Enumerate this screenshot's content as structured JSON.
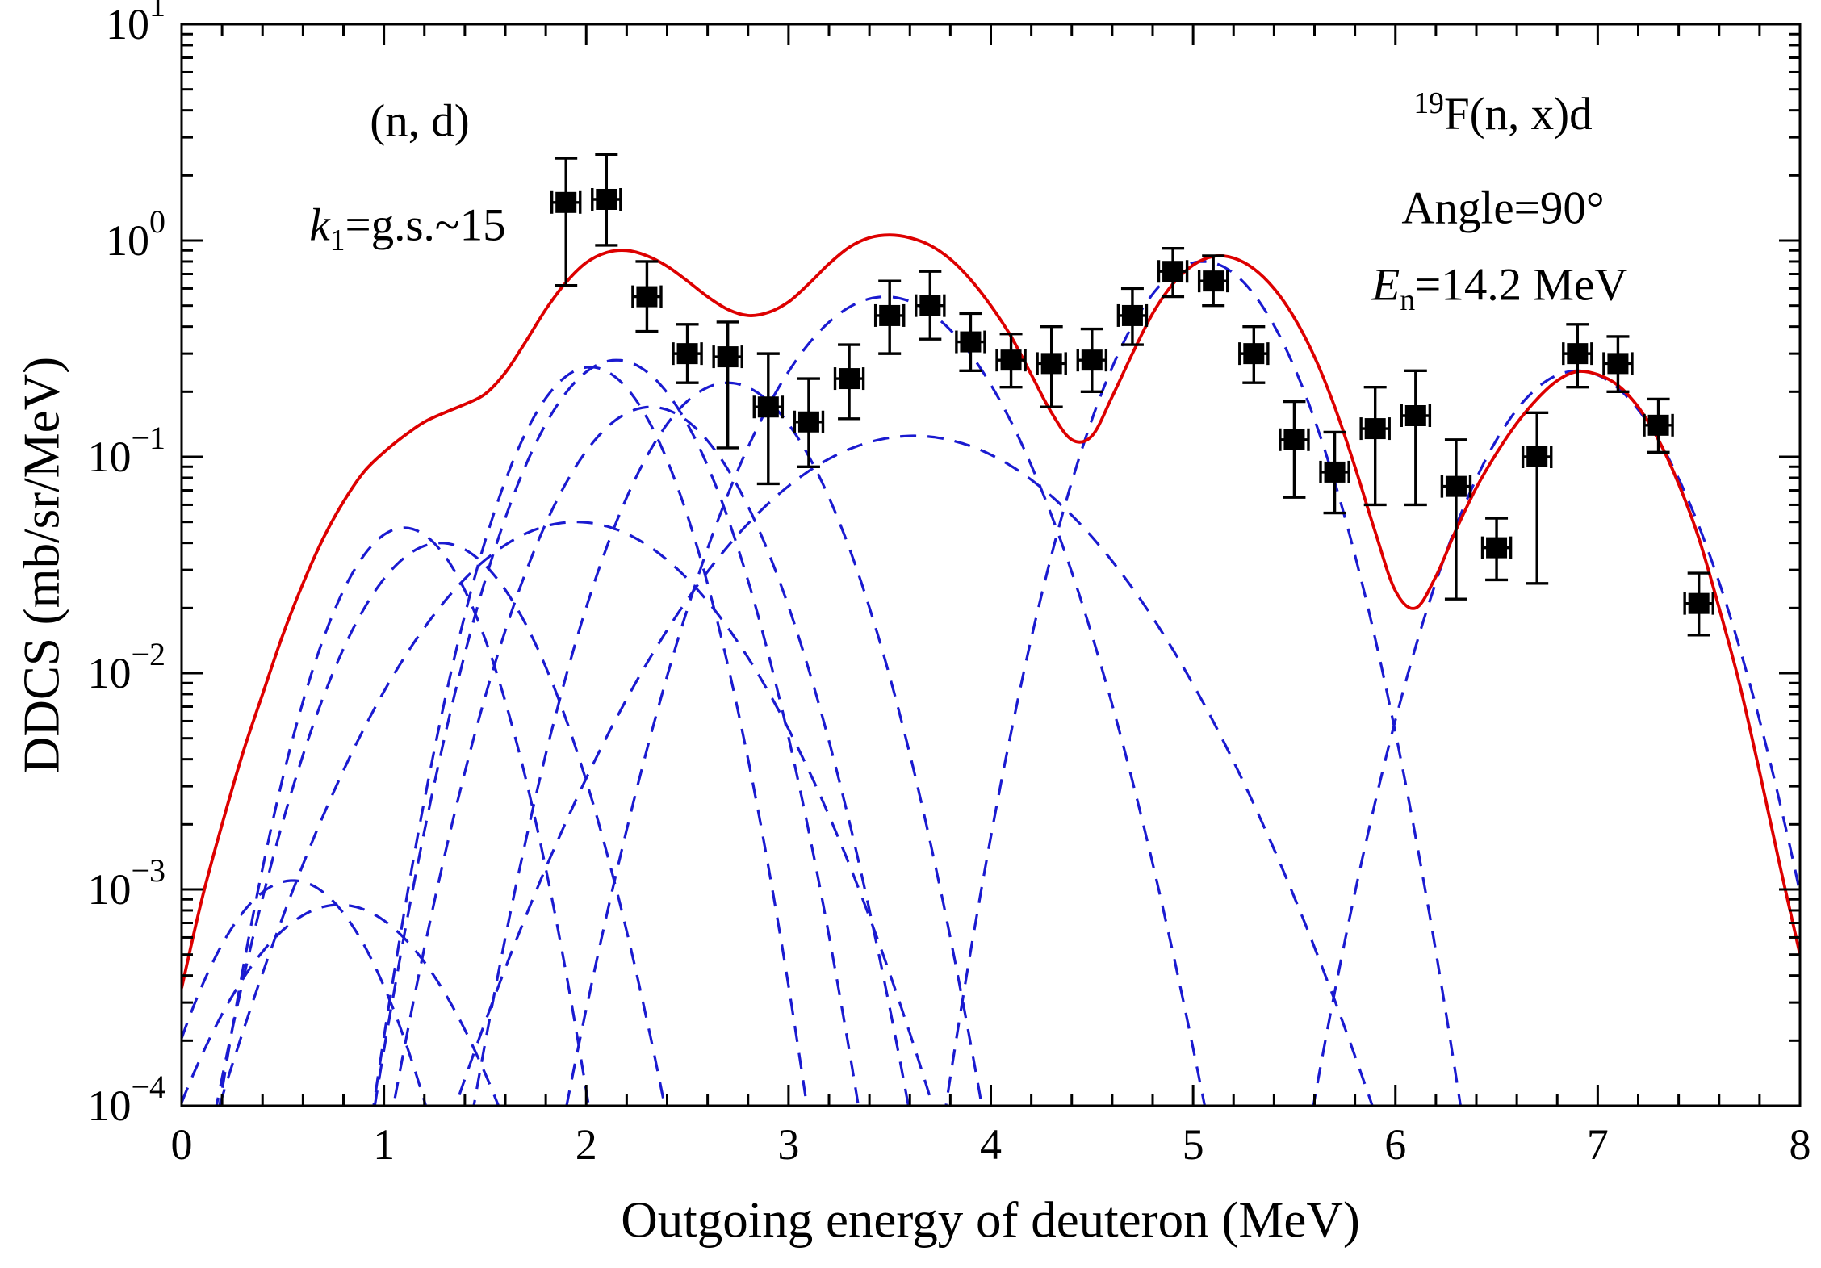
{
  "figure": {
    "background": "#ffffff",
    "annotations": {
      "nd": "(n, d)",
      "k_var": "k",
      "k_sub": "1",
      "k_rest": "=g.s.~15",
      "f_sup": "19",
      "f_main": "F(n, x)d",
      "angle": "Angle=90°",
      "en_var": "E",
      "en_sub": "n",
      "en_rest": "=14.2 MeV"
    }
  },
  "chart_data": {
    "type": "line",
    "title": "",
    "xlabel": "Outgoing energy of deuteron (MeV)",
    "ylabel": "DDCS (mb/sr/MeV)",
    "xlim": [
      0,
      8
    ],
    "ylim_log10": [
      -4,
      1
    ],
    "x_major_ticks": [
      0,
      1,
      2,
      3,
      4,
      5,
      6,
      7,
      8
    ],
    "x_minor_step": 0.2,
    "y_major_exponents": [
      -4,
      -3,
      -2,
      -1,
      0,
      1
    ],
    "grid": false,
    "legend": "none",
    "colors": {
      "total": "#dd0000",
      "components": "#1a1ad0",
      "data": "#000000",
      "frame": "#000000"
    },
    "series_meta": [
      {
        "name": "total DDCS (solid red)",
        "style": "solid"
      },
      {
        "name": "individual level contributions k=g.s.~15 (dashed blue)",
        "style": "dashed"
      },
      {
        "name": "experimental data (black squares with error bars)",
        "style": "marker"
      }
    ],
    "total_curve": [
      [
        0,
        0.00035
      ],
      [
        0.1,
        0.0009
      ],
      [
        0.2,
        0.002
      ],
      [
        0.3,
        0.0042
      ],
      [
        0.4,
        0.008
      ],
      [
        0.5,
        0.015
      ],
      [
        0.6,
        0.026
      ],
      [
        0.7,
        0.042
      ],
      [
        0.8,
        0.062
      ],
      [
        0.9,
        0.085
      ],
      [
        1.0,
        0.105
      ],
      [
        1.1,
        0.125
      ],
      [
        1.2,
        0.145
      ],
      [
        1.3,
        0.16
      ],
      [
        1.4,
        0.175
      ],
      [
        1.5,
        0.195
      ],
      [
        1.6,
        0.245
      ],
      [
        1.7,
        0.34
      ],
      [
        1.8,
        0.48
      ],
      [
        1.9,
        0.64
      ],
      [
        2.0,
        0.79
      ],
      [
        2.1,
        0.88
      ],
      [
        2.2,
        0.9
      ],
      [
        2.3,
        0.85
      ],
      [
        2.4,
        0.76
      ],
      [
        2.5,
        0.65
      ],
      [
        2.6,
        0.55
      ],
      [
        2.7,
        0.48
      ],
      [
        2.8,
        0.45
      ],
      [
        2.9,
        0.465
      ],
      [
        3.0,
        0.52
      ],
      [
        3.1,
        0.63
      ],
      [
        3.2,
        0.78
      ],
      [
        3.3,
        0.93
      ],
      [
        3.4,
        1.03
      ],
      [
        3.5,
        1.06
      ],
      [
        3.6,
        1.03
      ],
      [
        3.7,
        0.95
      ],
      [
        3.8,
        0.82
      ],
      [
        3.9,
        0.66
      ],
      [
        4.0,
        0.5
      ],
      [
        4.1,
        0.36
      ],
      [
        4.2,
        0.24
      ],
      [
        4.3,
        0.16
      ],
      [
        4.4,
        0.12
      ],
      [
        4.5,
        0.125
      ],
      [
        4.6,
        0.19
      ],
      [
        4.7,
        0.3
      ],
      [
        4.8,
        0.46
      ],
      [
        4.9,
        0.63
      ],
      [
        5.0,
        0.77
      ],
      [
        5.1,
        0.845
      ],
      [
        5.2,
        0.83
      ],
      [
        5.3,
        0.74
      ],
      [
        5.4,
        0.6
      ],
      [
        5.5,
        0.44
      ],
      [
        5.6,
        0.29
      ],
      [
        5.7,
        0.17
      ],
      [
        5.8,
        0.09
      ],
      [
        5.9,
        0.045
      ],
      [
        6.0,
        0.024
      ],
      [
        6.1,
        0.02
      ],
      [
        6.2,
        0.028
      ],
      [
        6.3,
        0.046
      ],
      [
        6.4,
        0.072
      ],
      [
        6.5,
        0.104
      ],
      [
        6.6,
        0.143
      ],
      [
        6.7,
        0.185
      ],
      [
        6.8,
        0.225
      ],
      [
        6.9,
        0.248
      ],
      [
        7.0,
        0.24
      ],
      [
        7.1,
        0.214
      ],
      [
        7.2,
        0.17
      ],
      [
        7.3,
        0.12
      ],
      [
        7.4,
        0.075
      ],
      [
        7.5,
        0.042
      ],
      [
        7.6,
        0.02
      ],
      [
        7.7,
        0.009
      ],
      [
        7.8,
        0.0035
      ],
      [
        7.9,
        0.0013
      ],
      [
        8.0,
        0.0005
      ]
    ],
    "components_gaussian": [
      {
        "center": 0.55,
        "peak": 0.0011,
        "sigma": 0.3
      },
      {
        "center": 0.78,
        "peak": 0.00085,
        "sigma": 0.38
      },
      {
        "center": 1.1,
        "peak": 0.047,
        "sigma": 0.26
      },
      {
        "center": 1.28,
        "peak": 0.04,
        "sigma": 0.32
      },
      {
        "center": 1.95,
        "peak": 0.05,
        "sigma": 0.5
      },
      {
        "center": 2.02,
        "peak": 0.26,
        "sigma": 0.27
      },
      {
        "center": 2.15,
        "peak": 0.28,
        "sigma": 0.3
      },
      {
        "center": 2.32,
        "peak": 0.17,
        "sigma": 0.33
      },
      {
        "center": 2.7,
        "peak": 0.22,
        "sigma": 0.32
      },
      {
        "center": 3.48,
        "peak": 0.55,
        "sigma": 0.38
      },
      {
        "center": 3.62,
        "peak": 0.125,
        "sigma": 0.6
      },
      {
        "center": 5.05,
        "peak": 0.8,
        "sigma": 0.3
      },
      {
        "center": 6.9,
        "peak": 0.25,
        "sigma": 0.33
      }
    ],
    "data_points": {
      "marker": "filled-square",
      "xerr": 0.07,
      "points": [
        [
          1.9,
          1.5,
          0.62,
          2.4
        ],
        [
          2.1,
          1.55,
          0.95,
          2.5
        ],
        [
          2.3,
          0.55,
          0.38,
          0.8
        ],
        [
          2.5,
          0.3,
          0.22,
          0.41
        ],
        [
          2.7,
          0.29,
          0.11,
          0.42
        ],
        [
          2.9,
          0.17,
          0.075,
          0.3
        ],
        [
          3.1,
          0.145,
          0.09,
          0.23
        ],
        [
          3.3,
          0.23,
          0.15,
          0.33
        ],
        [
          3.5,
          0.45,
          0.3,
          0.65
        ],
        [
          3.7,
          0.5,
          0.35,
          0.72
        ],
        [
          3.9,
          0.34,
          0.25,
          0.46
        ],
        [
          4.1,
          0.28,
          0.21,
          0.37
        ],
        [
          4.3,
          0.27,
          0.17,
          0.4
        ],
        [
          4.5,
          0.28,
          0.2,
          0.39
        ],
        [
          4.7,
          0.45,
          0.33,
          0.6
        ],
        [
          4.9,
          0.72,
          0.55,
          0.92
        ],
        [
          5.1,
          0.65,
          0.5,
          0.85
        ],
        [
          5.3,
          0.3,
          0.22,
          0.4
        ],
        [
          5.5,
          0.12,
          0.065,
          0.18
        ],
        [
          5.7,
          0.085,
          0.055,
          0.13
        ],
        [
          5.9,
          0.135,
          0.06,
          0.21
        ],
        [
          6.1,
          0.155,
          0.06,
          0.25
        ],
        [
          6.3,
          0.073,
          0.022,
          0.12
        ],
        [
          6.5,
          0.038,
          0.027,
          0.052
        ],
        [
          6.7,
          0.1,
          0.026,
          0.16
        ],
        [
          6.9,
          0.3,
          0.21,
          0.41
        ],
        [
          7.1,
          0.27,
          0.2,
          0.36
        ],
        [
          7.3,
          0.14,
          0.105,
          0.185
        ],
        [
          7.5,
          0.021,
          0.015,
          0.029
        ]
      ]
    }
  }
}
